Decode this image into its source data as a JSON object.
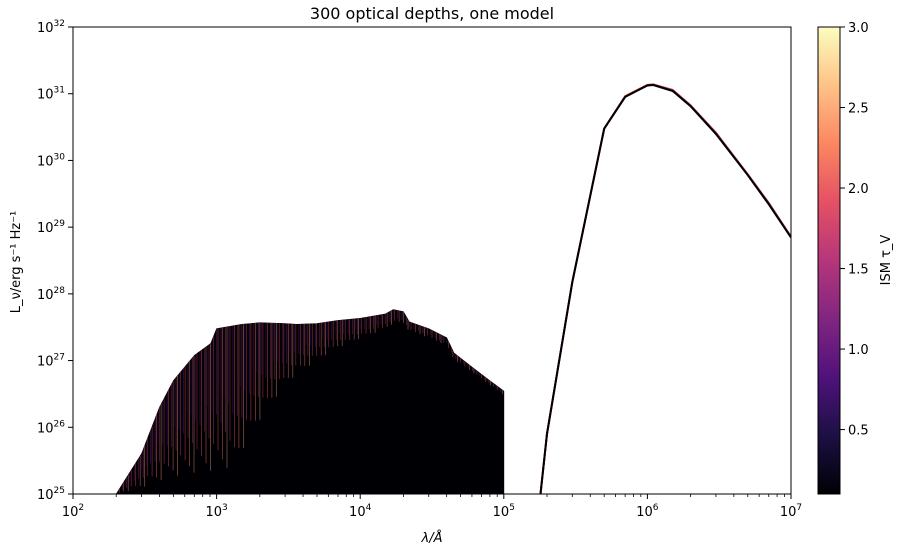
{
  "chart_data": {
    "type": "line",
    "title": "300 optical depths, one model",
    "xlabel": "λ/Å",
    "ylabel": "L_ν/erg s⁻¹ Hz⁻¹",
    "x_scale": "log",
    "y_scale": "log",
    "xlim": [
      100,
      10000000
    ],
    "ylim": [
      1e+25,
      1e+32
    ],
    "x_ticks": [
      {
        "value": 100,
        "base": "10",
        "exp": "2"
      },
      {
        "value": 1000,
        "base": "10",
        "exp": "3"
      },
      {
        "value": 10000,
        "base": "10",
        "exp": "4"
      },
      {
        "value": 100000,
        "base": "10",
        "exp": "5"
      },
      {
        "value": 1000000,
        "base": "10",
        "exp": "6"
      },
      {
        "value": 10000000,
        "base": "10",
        "exp": "7"
      }
    ],
    "y_ticks": [
      {
        "value": 1e+25,
        "base": "10",
        "exp": "25"
      },
      {
        "value": 1e+26,
        "base": "10",
        "exp": "26"
      },
      {
        "value": 1e+27,
        "base": "10",
        "exp": "27"
      },
      {
        "value": 1e+28,
        "base": "10",
        "exp": "28"
      },
      {
        "value": 1e+29,
        "base": "10",
        "exp": "29"
      },
      {
        "value": 1e+30,
        "base": "10",
        "exp": "30"
      },
      {
        "value": 1e+31,
        "base": "10",
        "exp": "31"
      },
      {
        "value": 1e+32,
        "base": "10",
        "exp": "32"
      }
    ],
    "grid": false,
    "n_curves": 300,
    "series": [
      {
        "tau_V": 0.1,
        "stellar_x": [
          200,
          300,
          400,
          500,
          700,
          910,
          1000,
          1500,
          2000,
          3000,
          3600,
          5000,
          7000,
          10000,
          15000,
          17000,
          20000,
          22000,
          30000,
          40000,
          45000,
          60000,
          80000,
          100000
        ],
        "stellar_y": [
          1e+25,
          4e+25,
          2e+26,
          5e+26,
          1.2e+27,
          1.8e+27,
          3e+27,
          3.5e+27,
          3.7e+27,
          3.6e+27,
          3.5e+27,
          3.6e+27,
          4e+27,
          4.3e+27,
          5e+27,
          5.8e+27,
          5.4e+27,
          3.8e+27,
          3e+27,
          2.2e+27,
          1.3e+27,
          8e+26,
          5e+26,
          3.5e+26
        ],
        "dust_x": [
          180000,
          200000,
          300000,
          500000,
          700000,
          1000000,
          1100000,
          1500000,
          2000000,
          3000000,
          5000000,
          7000000,
          10000000
        ],
        "dust_y": [
          1e+25,
          8e+25,
          1.5e+28,
          3e+30,
          9e+30,
          1.33e+31,
          1.35e+31,
          1.1e+31,
          6.5e+30,
          2.5e+30,
          6e+29,
          2.2e+29,
          7e+28
        ]
      },
      {
        "tau_V": 1.0,
        "stellar_x": [
          300,
          500,
          700,
          910,
          1000,
          1500,
          2000,
          3000,
          3600,
          5000,
          7000,
          10000,
          15000,
          17000,
          20000,
          22000,
          30000,
          40000,
          45000,
          60000,
          80000,
          100000
        ],
        "stellar_y": [
          1e+25,
          1e+26,
          4e+26,
          9e+26,
          1.2e+27,
          1.6e+27,
          1.9e+27,
          2.2e+27,
          2.3e+27,
          2.7e+27,
          3.2e+27,
          3.6e+27,
          4.3e+27,
          5e+27,
          4.7e+27,
          3.4e+27,
          2.7e+27,
          2e+27,
          1.2e+27,
          7.5e+26,
          4.8e+26,
          3.3e+26
        ],
        "dust_x": [
          180000,
          200000,
          300000,
          500000,
          700000,
          1000000,
          1100000,
          1500000,
          2000000,
          3000000,
          5000000,
          7000000,
          10000000
        ],
        "dust_y": [
          1e+25,
          8e+25,
          1.5e+28,
          3e+30,
          9e+30,
          1.34e+31,
          1.36e+31,
          1.12e+31,
          6.6e+30,
          2.55e+30,
          6.1e+29,
          2.25e+29,
          7.1e+28
        ]
      },
      {
        "tau_V": 2.0,
        "stellar_x": [
          700,
          910,
          1000,
          1500,
          2000,
          3000,
          3600,
          5000,
          7000,
          10000,
          15000,
          17000,
          20000,
          22000,
          30000,
          40000,
          45000,
          60000,
          80000,
          100000
        ],
        "stellar_y": [
          1e+25,
          5e+25,
          8e+25,
          3e+26,
          6e+26,
          1.1e+27,
          1.3e+27,
          1.8e+27,
          2.4e+27,
          2.9e+27,
          3.6e+27,
          4.2e+27,
          4e+27,
          3e+27,
          2.4e+27,
          1.8e+27,
          1.1e+27,
          7e+26,
          4.5e+26,
          3.1e+26
        ],
        "dust_x": [
          180000,
          200000,
          300000,
          500000,
          700000,
          1000000,
          1100000,
          1500000,
          2000000,
          3000000,
          5000000,
          7000000,
          10000000
        ],
        "dust_y": [
          1e+25,
          8e+25,
          1.5e+28,
          3e+30,
          9.2e+30,
          1.36e+31,
          1.38e+31,
          1.14e+31,
          6.7e+30,
          2.6e+30,
          6.2e+29,
          2.3e+29,
          7.2e+28
        ]
      },
      {
        "tau_V": 3.0,
        "stellar_x": [
          1300,
          1500,
          2000,
          3000,
          3600,
          5000,
          7000,
          10000,
          15000,
          17000,
          20000,
          22000,
          30000,
          40000,
          45000,
          60000,
          80000,
          100000
        ],
        "stellar_y": [
          1e+25,
          2e+25,
          7e+25,
          3e+26,
          4.5e+26,
          8e+26,
          1.3e+27,
          1.9e+27,
          2.7e+27,
          3.3e+27,
          3.3e+27,
          2.6e+27,
          2.1e+27,
          1.6e+27,
          1e+27,
          6.5e+26,
          4.2e+26,
          2.9e+26
        ],
        "dust_x": [
          180000,
          200000,
          300000,
          500000,
          700000,
          1000000,
          1100000,
          1500000,
          2000000,
          3000000,
          5000000,
          7000000,
          10000000
        ],
        "dust_y": [
          1e+25,
          8e+25,
          1.5e+28,
          3e+30,
          9.3e+30,
          1.38e+31,
          1.4e+31,
          1.16e+31,
          6.8e+30,
          2.65e+30,
          6.3e+29,
          2.35e+29,
          7.3e+28
        ]
      }
    ],
    "colorbar": {
      "label": "ISM τ_V",
      "range": [
        0.1,
        3.0
      ],
      "colormap": "magma",
      "ticks": [
        {
          "value": 0.5,
          "label": "0.5"
        },
        {
          "value": 1.0,
          "label": "1.0"
        },
        {
          "value": 1.5,
          "label": "1.5"
        },
        {
          "value": 2.0,
          "label": "2.0"
        },
        {
          "value": 2.5,
          "label": "2.5"
        },
        {
          "value": 3.0,
          "label": "3.0"
        }
      ],
      "colors": [
        "#000004",
        "#1c1044",
        "#4f127b",
        "#812581",
        "#b5367a",
        "#e55064",
        "#fb8761",
        "#fec287",
        "#fcfdbf"
      ]
    }
  }
}
